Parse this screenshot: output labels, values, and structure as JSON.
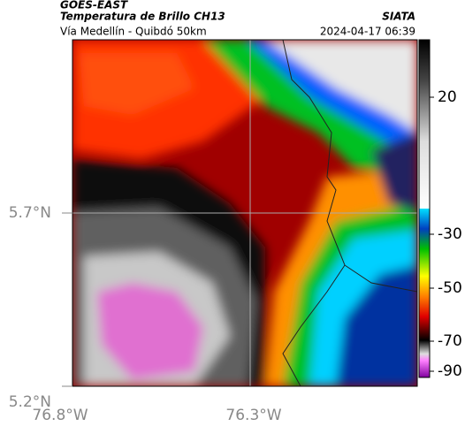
{
  "header": {
    "satellite": "GOES-EAST",
    "product": "Temperatura de Brillo CH13",
    "region": "Vía Medellín - Quibdó 50km",
    "source": "SIATA",
    "datetime": "2024-04-17 06:39"
  },
  "map": {
    "lat_labels": [
      "5.7°N",
      "5.2°N"
    ],
    "lon_labels": [
      "76.8°W",
      "76.3°W"
    ]
  },
  "colorbar": {
    "ticks": [
      20,
      -30,
      -50,
      -70,
      -90
    ]
  }
}
